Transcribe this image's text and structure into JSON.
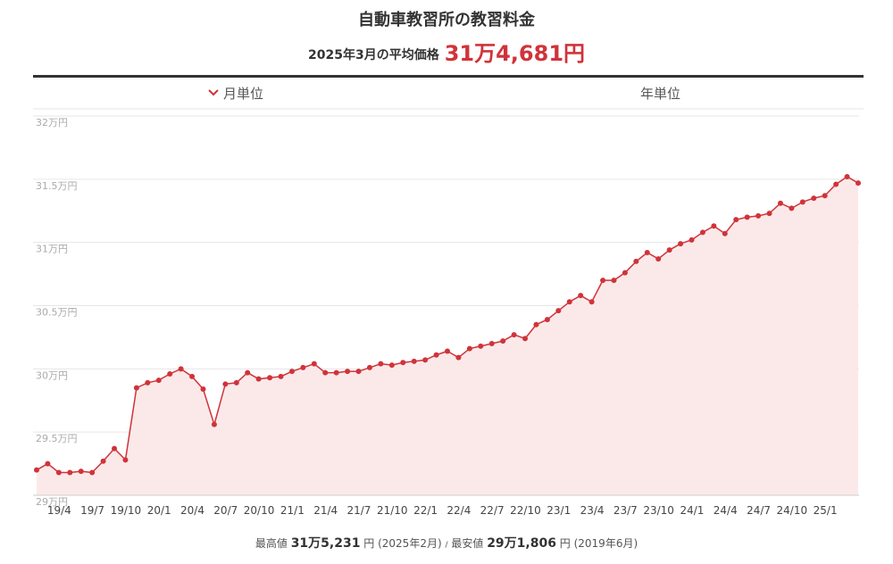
{
  "header": {
    "title": "自動車教習所の教習料金",
    "subtitle": "2025年3月の平均価格",
    "highlight": "31万4,681円"
  },
  "tabs": [
    "月単位",
    "年単位"
  ],
  "footer": {
    "max_label": "最高値",
    "max_value": "31万5,231",
    "max_note": "円 (2025年2月)",
    "separator": "/",
    "min_label": "最安値",
    "min_value": "29万1,806",
    "min_note": "円 (2019年6月)"
  },
  "chart_data": {
    "type": "area",
    "color": "#d0333a",
    "fill": "#fbe9e9",
    "grid": true,
    "categories": [
      null,
      null,
      null,
      "19/4",
      null,
      null,
      "19/7",
      null,
      null,
      "19/10",
      null,
      null,
      "20/1",
      null,
      null,
      "20/4",
      null,
      null,
      "20/7",
      null,
      null,
      "20/10",
      null,
      null,
      "21/1",
      null,
      null,
      "21/4",
      null,
      null,
      "21/7",
      null,
      null,
      "21/10",
      null,
      null,
      "22/1",
      null,
      null,
      "22/4",
      null,
      null,
      "22/7",
      null,
      null,
      "22/10",
      null,
      null,
      "23/1",
      null,
      null,
      "23/4",
      null,
      null,
      "23/7",
      null,
      null,
      "23/10",
      null,
      null,
      "24/1",
      null,
      null,
      "24/4",
      null,
      null,
      "24/7",
      null,
      null,
      "24/10",
      null,
      null,
      "25/1",
      null,
      null
    ],
    "values": [
      29.2,
      29.25,
      29.18,
      29.18,
      29.19,
      29.18,
      29.27,
      29.37,
      29.28,
      29.85,
      29.89,
      29.91,
      29.96,
      30.0,
      29.94,
      29.84,
      29.56,
      29.88,
      29.89,
      29.97,
      29.92,
      29.93,
      29.94,
      29.98,
      30.01,
      30.04,
      29.97,
      29.97,
      29.98,
      29.98,
      30.01,
      30.04,
      30.03,
      30.05,
      30.06,
      30.07,
      30.11,
      30.14,
      30.09,
      30.16,
      30.18,
      30.2,
      30.22,
      30.27,
      30.24,
      30.35,
      30.39,
      30.46,
      30.53,
      30.58,
      30.53,
      30.7,
      30.7,
      30.76,
      30.85,
      30.92,
      30.87,
      30.94,
      30.99,
      31.02,
      31.08,
      31.13,
      31.07,
      31.18,
      31.2,
      31.21,
      31.23,
      31.31,
      31.27,
      31.32,
      31.35,
      31.37,
      31.46,
      31.52,
      31.47
    ],
    "ylim": [
      29,
      32
    ],
    "yticks": [
      {
        "value": 29,
        "label": "29万円"
      },
      {
        "value": 29.5,
        "label": "29.5万円"
      },
      {
        "value": 30,
        "label": "30万円"
      },
      {
        "value": 30.5,
        "label": "30.5万円"
      },
      {
        "value": 31,
        "label": "31万円"
      },
      {
        "value": 31.5,
        "label": "31.5万円"
      },
      {
        "value": 32,
        "label": "32万円"
      }
    ]
  }
}
